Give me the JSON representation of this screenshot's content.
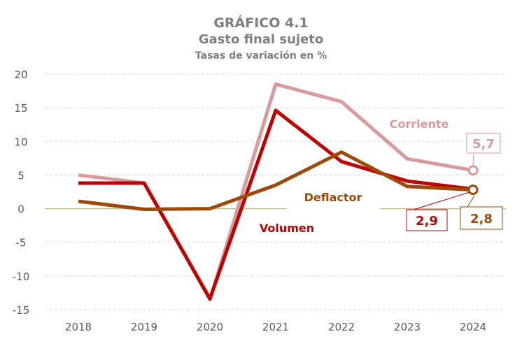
{
  "chart_data": {
    "type": "line",
    "title": "GRÁFICO 4.1",
    "subtitle": "Gasto final sujeto",
    "subtitle2": "Tasas de variación en %",
    "xlabel": "",
    "ylabel": "",
    "categories": [
      "2018",
      "2019",
      "2020",
      "2021",
      "2022",
      "2023",
      "2024"
    ],
    "ylim": [
      -15,
      20
    ],
    "yticks": [
      20,
      15,
      10,
      5,
      0,
      -5,
      -10,
      -15
    ],
    "grid": true,
    "series": [
      {
        "name": "Corriente",
        "color": "#d99a9c",
        "values": [
          5.0,
          3.8,
          -13.5,
          18.5,
          15.9,
          7.4,
          5.7
        ],
        "end_label": "5,7"
      },
      {
        "name": "Volumen",
        "color": "#c00000",
        "values": [
          3.8,
          3.8,
          -13.4,
          14.6,
          7.0,
          4.1,
          2.9
        ],
        "end_label": "2,9"
      },
      {
        "name": "Deflactor",
        "color": "#9c4a0a",
        "values": [
          1.1,
          -0.1,
          0.0,
          3.5,
          8.4,
          3.3,
          2.8
        ],
        "end_label": "2,8"
      }
    ]
  }
}
